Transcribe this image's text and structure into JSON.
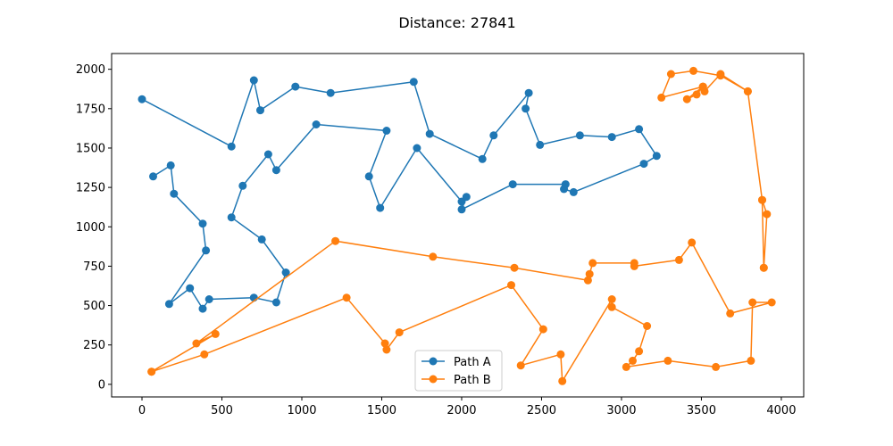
{
  "chart_data": {
    "type": "line",
    "title": "Distance: 27841",
    "xlabel": "",
    "ylabel": "",
    "xlim": [
      -190,
      4140
    ],
    "ylim": [
      -80,
      2100
    ],
    "xticks": [
      0,
      500,
      1000,
      1500,
      2000,
      2500,
      3000,
      3500,
      4000
    ],
    "yticks": [
      0,
      250,
      500,
      750,
      1000,
      1250,
      1500,
      1750,
      2000
    ],
    "grid": false,
    "legend": "lower-center",
    "series": [
      {
        "name": "Path A",
        "color": "#1f77b4",
        "marker": "circle",
        "x": [
          0,
          560,
          700,
          740,
          960,
          1180,
          1700,
          1800,
          2130,
          2200,
          2420,
          2400,
          2490,
          2740,
          2940,
          3110,
          3220,
          3140,
          2700,
          2640,
          2650,
          2320,
          2000,
          2030,
          2000,
          1720,
          1490,
          1420,
          1530,
          1090,
          840,
          790,
          630,
          560,
          750,
          900,
          840,
          700,
          420,
          380,
          300,
          170,
          400,
          380,
          200,
          180,
          70
        ],
        "y": [
          1810,
          1510,
          1930,
          1740,
          1890,
          1850,
          1920,
          1590,
          1430,
          1580,
          1850,
          1750,
          1520,
          1580,
          1570,
          1620,
          1450,
          1400,
          1220,
          1240,
          1270,
          1270,
          1110,
          1190,
          1160,
          1500,
          1120,
          1320,
          1610,
          1650,
          1360,
          1460,
          1260,
          1060,
          920,
          710,
          520,
          550,
          540,
          480,
          610,
          510,
          850,
          1020,
          1210,
          1390,
          1320
        ]
      },
      {
        "name": "Path B",
        "color": "#ff7f0e",
        "marker": "circle",
        "x": [
          60,
          460,
          340,
          1210,
          1820,
          2330,
          2790,
          2800,
          2820,
          3080,
          3080,
          3360,
          3440,
          3680,
          3940,
          3820,
          3810,
          3590,
          3290,
          3030,
          3070,
          3110,
          3160,
          2940,
          2940,
          2630,
          2620,
          2370,
          2510,
          2310,
          1610,
          1530,
          1520,
          1280,
          390,
          60
        ],
        "y": [
          80,
          320,
          260,
          910,
          810,
          740,
          660,
          700,
          770,
          770,
          750,
          790,
          900,
          450,
          520,
          520,
          150,
          110,
          150,
          110,
          150,
          210,
          370,
          490,
          540,
          20,
          190,
          120,
          350,
          630,
          330,
          220,
          260,
          550,
          190,
          80
        ]
      },
      {
        "name": "",
        "color": "#ff7f0e",
        "marker": "circle",
        "x": [
          3890,
          3910,
          3880,
          3790,
          3620,
          3520,
          3510,
          3470,
          3410,
          3510,
          3250,
          3310,
          3450,
          3620,
          3790,
          3880,
          3890
        ],
        "y": [
          740,
          1080,
          1170,
          1860,
          1970,
          1860,
          1890,
          1840,
          1810,
          1890,
          1820,
          1970,
          1990,
          1960,
          1860,
          1170,
          740
        ]
      }
    ]
  }
}
